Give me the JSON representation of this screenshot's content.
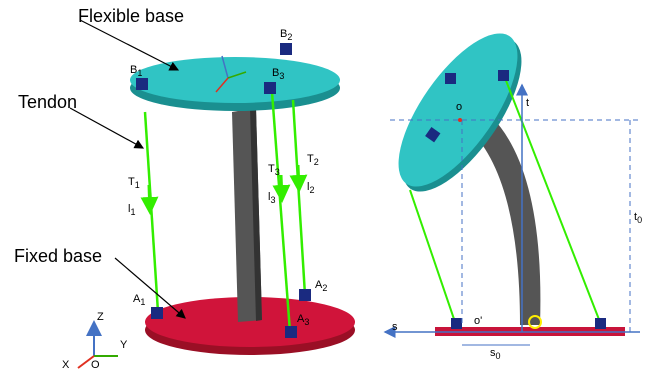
{
  "callouts": [
    "Flexible base",
    "Tendon",
    "Fixed base"
  ],
  "left_symbols": [
    {
      "base": "B",
      "sub": "1"
    },
    {
      "base": "B",
      "sub": "2"
    },
    {
      "base": "B",
      "sub": "3"
    },
    {
      "base": "T",
      "sub": "1"
    },
    {
      "base": "l",
      "sub": "1"
    },
    {
      "base": "T",
      "sub": "3"
    },
    {
      "base": "l",
      "sub": "3"
    },
    {
      "base": "T",
      "sub": "2"
    },
    {
      "base": "l",
      "sub": "2"
    },
    {
      "base": "A",
      "sub": "1"
    },
    {
      "base": "A",
      "sub": "2"
    },
    {
      "base": "A",
      "sub": "3"
    }
  ],
  "axes": [
    "X",
    "Y",
    "Z",
    "O"
  ],
  "right_symbols": [
    {
      "base": "o",
      "sub": ""
    },
    {
      "base": "t",
      "sub": ""
    },
    {
      "base": "t",
      "sub": "0"
    },
    {
      "base": "o'",
      "sub": ""
    },
    {
      "base": "s",
      "sub": ""
    },
    {
      "base": "s",
      "sub": "0"
    }
  ]
}
